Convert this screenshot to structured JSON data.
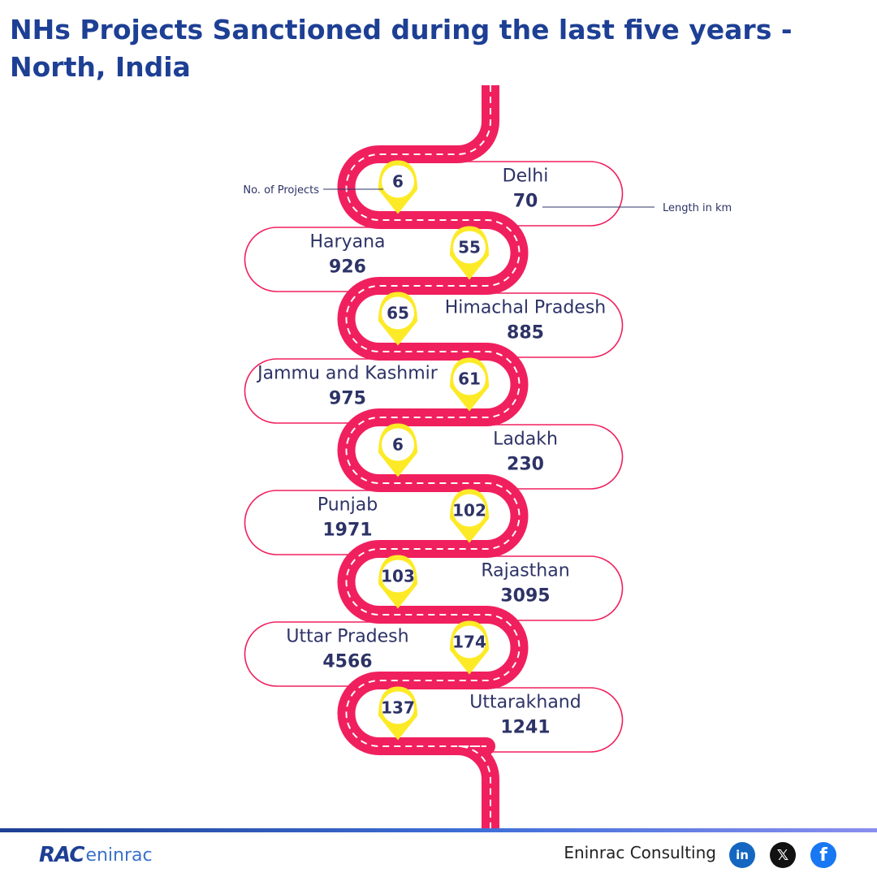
{
  "page": {
    "title": "NHs Projects Sanctioned during the last five years - North, India"
  },
  "chart_data": {
    "type": "table",
    "legend": {
      "projects_label": "No. of Projects",
      "length_label": "Length in km"
    },
    "rows": [
      {
        "state": "Delhi",
        "projects": 6,
        "length_km": 70
      },
      {
        "state": "Haryana",
        "projects": 55,
        "length_km": 926
      },
      {
        "state": "Himachal Pradesh",
        "projects": 65,
        "length_km": 885
      },
      {
        "state": "Jammu and Kashmir",
        "projects": 61,
        "length_km": 975
      },
      {
        "state": "Ladakh",
        "projects": 6,
        "length_km": 230
      },
      {
        "state": "Punjab",
        "projects": 102,
        "length_km": 1971
      },
      {
        "state": "Rajasthan",
        "projects": 103,
        "length_km": 3095
      },
      {
        "state": "Uttar Pradesh",
        "projects": 174,
        "length_km": 4566
      },
      {
        "state": "Uttarakhand",
        "projects": 137,
        "length_km": 1241
      }
    ]
  },
  "colors": {
    "road": "#f0205e",
    "pin": "#fdea26",
    "title": "#1d3f94",
    "text": "#2d3366"
  },
  "footer": {
    "logo_text_main": "RAC",
    "logo_text_sub": "eninrac",
    "brand": "Eninrac Consulting",
    "social": [
      {
        "name": "linkedin-icon",
        "glyph": "in"
      },
      {
        "name": "x-icon",
        "glyph": "𝕏"
      },
      {
        "name": "facebook-icon",
        "glyph": "f"
      }
    ]
  }
}
